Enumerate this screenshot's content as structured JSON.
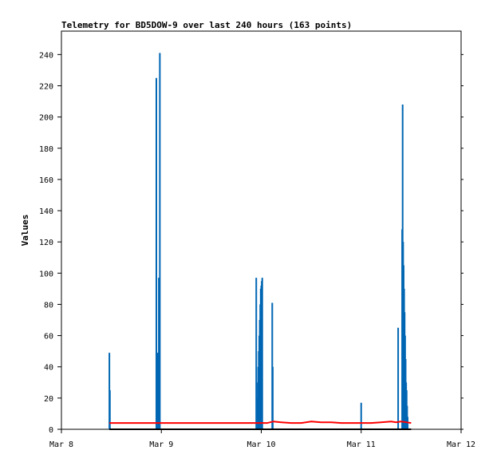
{
  "chart_data": {
    "type": "line",
    "title": "Telemetry for BD5DOW-9 over last 240 hours (163 points)",
    "xlabel": "",
    "ylabel": "Values",
    "ylim": [
      0,
      255
    ],
    "xlim": [
      0,
      4
    ],
    "y_ticks": [
      0,
      20,
      40,
      60,
      80,
      100,
      120,
      140,
      160,
      180,
      200,
      220,
      240
    ],
    "x_ticks": [
      {
        "value": 0,
        "label": "Mar 8"
      },
      {
        "value": 1,
        "label": "Mar 9"
      },
      {
        "value": 2,
        "label": "Mar 10"
      },
      {
        "value": 3,
        "label": "Mar 11"
      },
      {
        "value": 4,
        "label": "Mar 12"
      }
    ],
    "grid": false,
    "legend": "none",
    "series": [
      {
        "color": "#0066b3",
        "style": "spikes",
        "points": [
          {
            "x": 0.48,
            "y": 49
          },
          {
            "x": 0.485,
            "y": 25
          },
          {
            "x": 0.95,
            "y": 225
          },
          {
            "x": 0.965,
            "y": 49
          },
          {
            "x": 0.975,
            "y": 97
          },
          {
            "x": 0.985,
            "y": 241
          },
          {
            "x": 1.95,
            "y": 97
          },
          {
            "x": 1.955,
            "y": 10
          },
          {
            "x": 1.96,
            "y": 20
          },
          {
            "x": 1.965,
            "y": 30
          },
          {
            "x": 1.97,
            "y": 40
          },
          {
            "x": 1.975,
            "y": 50
          },
          {
            "x": 1.98,
            "y": 60
          },
          {
            "x": 1.985,
            "y": 70
          },
          {
            "x": 1.99,
            "y": 80
          },
          {
            "x": 1.995,
            "y": 90
          },
          {
            "x": 2.0,
            "y": 92
          },
          {
            "x": 2.005,
            "y": 95
          },
          {
            "x": 2.01,
            "y": 97
          },
          {
            "x": 2.11,
            "y": 81
          },
          {
            "x": 2.115,
            "y": 40
          },
          {
            "x": 3.0,
            "y": 17
          },
          {
            "x": 3.37,
            "y": 65
          },
          {
            "x": 3.41,
            "y": 128
          },
          {
            "x": 3.415,
            "y": 208
          },
          {
            "x": 3.42,
            "y": 120
          },
          {
            "x": 3.425,
            "y": 105
          },
          {
            "x": 3.43,
            "y": 90
          },
          {
            "x": 3.435,
            "y": 75
          },
          {
            "x": 3.44,
            "y": 60
          },
          {
            "x": 3.445,
            "y": 45
          },
          {
            "x": 3.45,
            "y": 30
          },
          {
            "x": 3.455,
            "y": 25
          },
          {
            "x": 3.46,
            "y": 15
          },
          {
            "x": 3.465,
            "y": 8
          }
        ]
      },
      {
        "color": "#ff0000",
        "style": "line",
        "x": [
          0.48,
          1.0,
          1.5,
          2.0,
          2.06,
          2.12,
          2.2,
          2.3,
          2.4,
          2.5,
          2.6,
          2.7,
          2.8,
          2.9,
          3.0,
          3.1,
          3.2,
          3.3,
          3.35,
          3.4,
          3.45,
          3.5
        ],
        "y": [
          4,
          4,
          4,
          4,
          4,
          5,
          4.5,
          4,
          4,
          5,
          4.5,
          4.5,
          4,
          4,
          4,
          4,
          4.5,
          5,
          4.5,
          5,
          4.5,
          4
        ]
      },
      {
        "color": "#000000",
        "style": "line",
        "x": [
          0.48,
          3.5
        ],
        "y": [
          0,
          0
        ]
      }
    ]
  }
}
